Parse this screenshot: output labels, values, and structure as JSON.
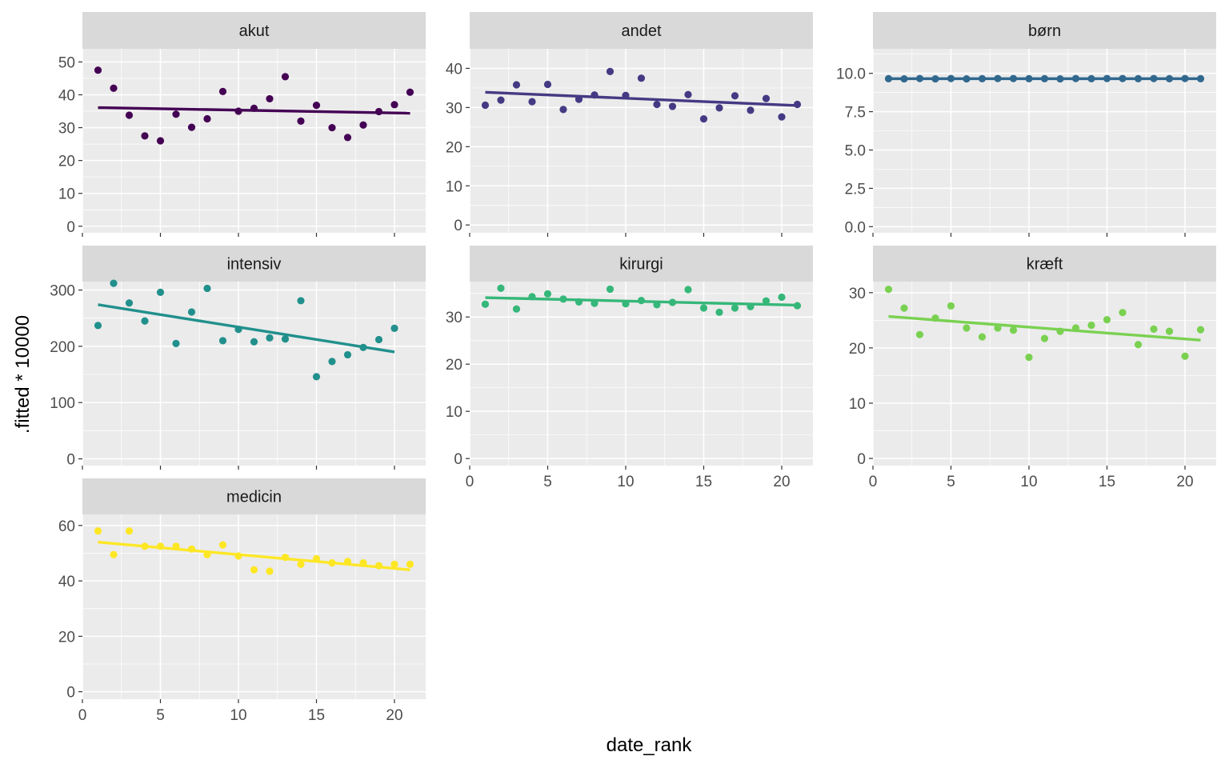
{
  "chart_data": {
    "type": "scatter",
    "xlabel": "date_rank",
    "ylabel": ".fitted * 10000",
    "x_ticks": [
      0,
      5,
      10,
      15,
      20
    ],
    "xlim": [
      0,
      22
    ],
    "grid": true,
    "legend": "none",
    "x": [
      1,
      2,
      3,
      4,
      5,
      6,
      7,
      8,
      9,
      10,
      11,
      12,
      13,
      14,
      15,
      16,
      17,
      18,
      19,
      20,
      21
    ],
    "panels": [
      {
        "name": "akut",
        "color": "#440154",
        "ylim": [
          -2,
          54
        ],
        "y_ticks": [
          0,
          10,
          20,
          30,
          40,
          50
        ],
        "y_tick_labels": [
          "0",
          "10",
          "20",
          "30",
          "40",
          "50"
        ],
        "points": [
          47.5,
          42,
          33.8,
          27.5,
          26,
          34.1,
          30.1,
          32.7,
          41,
          35,
          35.9,
          38.8,
          45.5,
          32,
          36.8,
          30,
          27,
          30.8,
          34.9,
          37,
          40.8
        ],
        "trend": [
          36.1,
          34.4
        ]
      },
      {
        "name": "andet",
        "color": "#443A83",
        "ylim": [
          -2,
          45
        ],
        "y_ticks": [
          0,
          10,
          20,
          30,
          40
        ],
        "y_tick_labels": [
          "0",
          "10",
          "20",
          "30",
          "40"
        ],
        "points": [
          30.6,
          31.9,
          35.8,
          31.5,
          35.9,
          29.5,
          32.1,
          33.2,
          39.2,
          33.1,
          37.5,
          30.8,
          30.3,
          33.3,
          27.1,
          29.9,
          33,
          29.3,
          32.3,
          27.6,
          30.8
        ],
        "trend": [
          33.9,
          30.5
        ]
      },
      {
        "name": "børn",
        "color": "#31688E",
        "ylim": [
          -0.4,
          11.6
        ],
        "y_ticks": [
          0,
          2.5,
          5,
          7.5,
          10
        ],
        "y_tick_labels": [
          "0.0",
          "2.5",
          "5.0",
          "7.5",
          "10.0"
        ],
        "points": [
          9.65,
          9.64,
          9.66,
          9.64,
          9.66,
          9.64,
          9.65,
          9.66,
          9.66,
          9.65,
          9.65,
          9.64,
          9.66,
          9.65,
          9.66,
          9.66,
          9.65,
          9.66,
          9.65,
          9.66,
          9.65
        ],
        "trend": [
          9.65,
          9.65
        ]
      },
      {
        "name": "intensiv",
        "color": "#21908C",
        "ylim": [
          -12,
          315
        ],
        "y_ticks": [
          0,
          100,
          200,
          300
        ],
        "y_tick_labels": [
          "0",
          "100",
          "200",
          "300"
        ],
        "points": [
          237,
          312,
          277,
          245,
          296,
          205,
          261,
          303,
          210,
          230,
          208,
          215,
          213,
          281,
          146,
          173,
          185,
          198,
          212,
          232,
          null
        ],
        "trend": [
          274,
          190
        ],
        "trend_x": [
          1,
          20
        ]
      },
      {
        "name": "kirurgi",
        "color": "#35B779",
        "ylim": [
          -1.5,
          37.5
        ],
        "y_ticks": [
          0,
          10,
          20,
          30
        ],
        "y_tick_labels": [
          "0",
          "10",
          "20",
          "30"
        ],
        "points": [
          32.7,
          36.1,
          31.7,
          34.3,
          34.9,
          33.8,
          33.2,
          32.9,
          35.9,
          32.8,
          33.5,
          32.6,
          33.1,
          35.8,
          31.9,
          31,
          31.9,
          32.2,
          33.4,
          34.2,
          32.4
        ],
        "trend": [
          34.1,
          32.5
        ]
      },
      {
        "name": "kræft",
        "color": "#7AD151",
        "ylim": [
          -1.3,
          32
        ],
        "y_ticks": [
          0,
          10,
          20,
          30
        ],
        "y_tick_labels": [
          "0",
          "10",
          "20",
          "30"
        ],
        "points": [
          30.6,
          27.2,
          22.4,
          25.4,
          27.6,
          23.6,
          22,
          23.6,
          23.2,
          18.3,
          21.7,
          23,
          23.6,
          24.1,
          25.1,
          26.4,
          20.6,
          23.4,
          23,
          18.5,
          23.3
        ],
        "trend": [
          25.7,
          21.4
        ]
      },
      {
        "name": "medicin",
        "color": "#FDE725",
        "ylim": [
          -2.7,
          64
        ],
        "y_ticks": [
          0,
          20,
          40,
          60
        ],
        "y_tick_labels": [
          "0",
          "20",
          "40",
          "60"
        ],
        "points": [
          58,
          49.5,
          58,
          52.5,
          52.5,
          52.5,
          51.5,
          49.5,
          53,
          49,
          44,
          43.5,
          48.5,
          46,
          48,
          46.5,
          47,
          46.5,
          45.5,
          46,
          46
        ],
        "trend": [
          54,
          44
        ]
      }
    ]
  }
}
